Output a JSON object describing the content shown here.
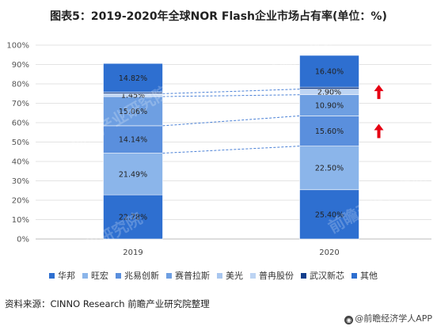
{
  "chart_data": {
    "type": "stacked-bar",
    "title": "图表5：2019-2020年全球NOR Flash企业市场占有率(单位：%)",
    "categories": [
      "2019",
      "2020"
    ],
    "ylim": [
      0,
      100
    ],
    "y_ticks": [
      "0%",
      "10%",
      "20%",
      "30%",
      "40%",
      "50%",
      "60%",
      "70%",
      "80%",
      "90%",
      "100%"
    ],
    "series": [
      {
        "name": "华邦",
        "values": [
          22.78,
          25.4
        ],
        "labels": [
          "22.78%",
          "25.40%"
        ],
        "color": "#2E6FD0"
      },
      {
        "name": "旺宏",
        "values": [
          21.49,
          22.5
        ],
        "labels": [
          "21.49%",
          "22.50%"
        ],
        "color": "#8BB5EA"
      },
      {
        "name": "兆易创新",
        "values": [
          14.14,
          15.6
        ],
        "labels": [
          "14.14%",
          "15.60%"
        ],
        "color": "#5A8FDD"
      },
      {
        "name": "赛普拉斯",
        "values": [
          15.06,
          10.9
        ],
        "labels": [
          "15.06%",
          "10.90%"
        ],
        "color": "#6E9FE2"
      },
      {
        "name": "美光",
        "values": [
          0.0,
          0.0
        ],
        "labels": [
          "",
          ""
        ],
        "color": "#A9C7EF"
      },
      {
        "name": "普冉股份",
        "values": [
          1.45,
          2.9
        ],
        "labels": [
          "1.45%",
          "2.90%"
        ],
        "color": "#BDD4F3"
      },
      {
        "name": "武汉新芯",
        "values": [
          0.8,
          1.0
        ],
        "labels": [
          "",
          ""
        ],
        "color": "#123E8C"
      },
      {
        "name": "其他",
        "values": [
          14.82,
          16.4
        ],
        "labels": [
          "14.82%",
          "16.40%"
        ],
        "color": "#2E6FD0"
      }
    ],
    "connectors": [
      {
        "series": "兆易创新"
      },
      {
        "series": "普冉股份"
      }
    ],
    "arrows": [
      {
        "series": "兆易创新",
        "direction": "up",
        "color": "#E60012"
      },
      {
        "series": "普冉股份",
        "direction": "up",
        "color": "#E60012"
      }
    ],
    "grid": true,
    "legend_position": "bottom"
  },
  "watermark": "前瞻产业研究院",
  "source": "资料来源：CINNO Research 前瞻产业研究院整理",
  "credit": "@前瞻经济学人APP"
}
